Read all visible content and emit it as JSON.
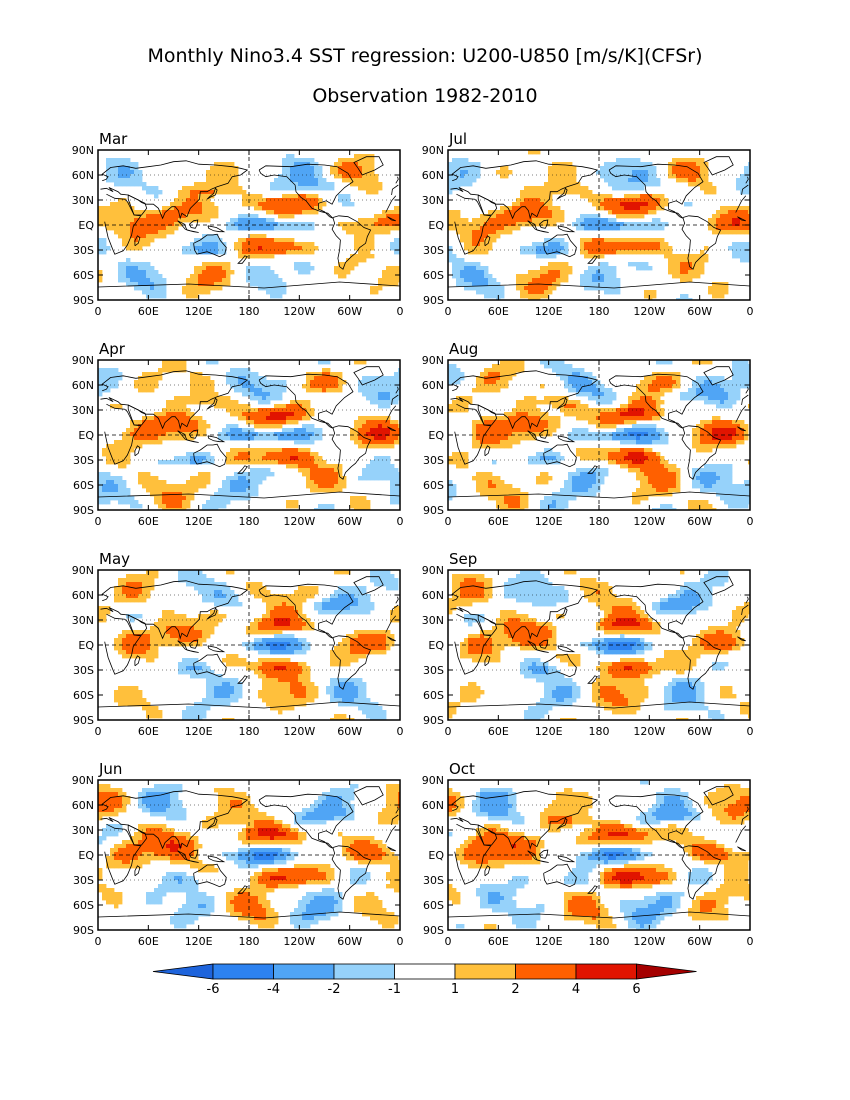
{
  "title": "Monthly Nino3.4 SST regression: U200-U850 [m/s/K](CFSr)",
  "subtitle": "Observation 1982-2010",
  "lat_labels": [
    "90N",
    "60N",
    "30N",
    "EQ",
    "30S",
    "60S",
    "90S"
  ],
  "lon_labels": [
    "0",
    "60E",
    "120E",
    "180",
    "120W",
    "60W",
    "0"
  ],
  "panels": [
    {
      "month": "Mar"
    },
    {
      "month": "Jul"
    },
    {
      "month": "Apr"
    },
    {
      "month": "Aug"
    },
    {
      "month": "May"
    },
    {
      "month": "Sep"
    },
    {
      "month": "Jun"
    },
    {
      "month": "Oct"
    }
  ],
  "colorbar": {
    "levels": [
      -6,
      -4,
      -2,
      -1,
      1,
      2,
      4,
      6
    ],
    "labels": [
      "-6",
      "-4",
      "-2",
      "-1",
      "1",
      "2",
      "4",
      "6"
    ],
    "colors": [
      "#1e64dc",
      "#2d82f0",
      "#50a5f5",
      "#96d2fa",
      "#ffffff",
      "#ffc03c",
      "#ff6000",
      "#e11400",
      "#a50000"
    ]
  }
}
